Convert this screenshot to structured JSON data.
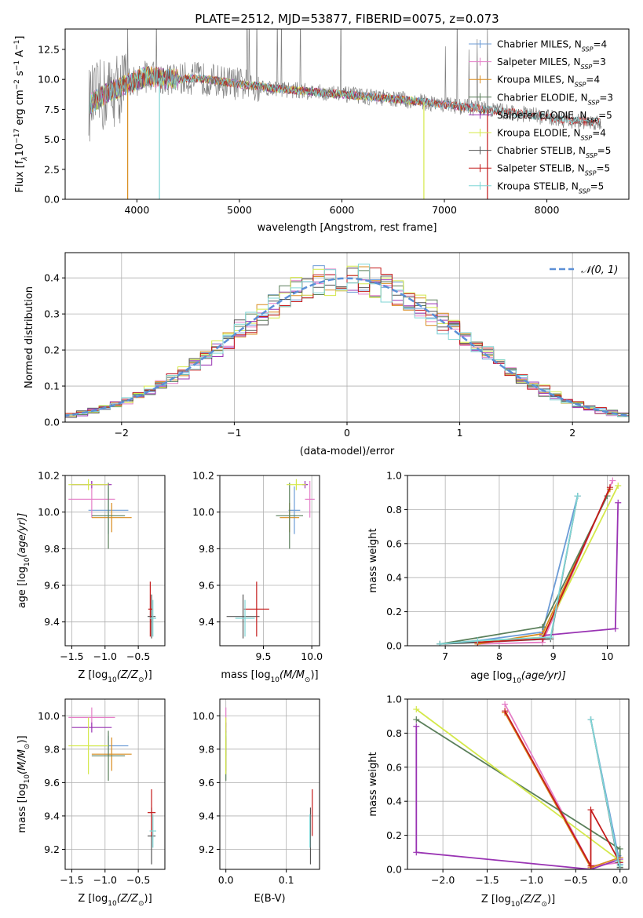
{
  "colors": {
    "Chabrier MILES": "#6b9bd6",
    "Salpeter MILES": "#e57fc8",
    "Kroupa MILES": "#d98c1e",
    "Chabrier ELODIE": "#5a7f5a",
    "Salpeter ELODIE": "#9933b3",
    "Kroupa ELODIE": "#d4e84a",
    "Chabrier STELIB": "#555555",
    "Salpeter STELIB": "#c41a1a",
    "Kroupa STELIB": "#7fd6d6",
    "normal": "#5b8fd6"
  },
  "chart_data": [
    {
      "id": "spectrum",
      "type": "line",
      "title": "PLATE=2512, MJD=53877, FIBERID=0075, z=0.073",
      "xlabel": "wavelength [Angstrom, rest frame]",
      "ylabel": "Flux [f",
      "ylabel_parts": [
        "Flux [f",
        "λ",
        "10",
        "−17",
        " erg cm",
        "−2",
        " s",
        "−1",
        " A",
        "−1",
        "]"
      ],
      "xlim": [
        3300,
        8800
      ],
      "ylim": [
        0,
        14.2
      ],
      "xticks": [
        4000,
        5000,
        6000,
        7000,
        8000
      ],
      "yticks": [
        0.0,
        2.5,
        5.0,
        7.5,
        10.0,
        12.5
      ],
      "ytick_labels": [
        "0.0",
        "2.5",
        "5.0",
        "7.5",
        "10.0",
        "12.5"
      ],
      "legend_position": "top-right",
      "continuum": {
        "x": [
          3530,
          3700,
          3900,
          4100,
          4300,
          4600,
          5000,
          5400,
          5800,
          6200,
          6600,
          7000,
          7400,
          7800,
          8200,
          8530
        ],
        "y": [
          7.9,
          8.8,
          9.6,
          10.3,
          10.0,
          10.1,
          9.6,
          9.2,
          8.9,
          8.6,
          8.3,
          7.9,
          7.5,
          7.1,
          6.6,
          6.4
        ]
      },
      "series": [
        {
          "name": "Chabrier MILES",
          "nssp": "4",
          "x_range": [
            3540,
            7400
          ]
        },
        {
          "name": "Salpeter MILES",
          "nssp": "3",
          "x_range": [
            3540,
            7400
          ]
        },
        {
          "name": "Kroupa MILES",
          "nssp": "4",
          "x_range": [
            3540,
            7400
          ]
        },
        {
          "name": "Chabrier ELODIE",
          "nssp": "3",
          "x_range": [
            3540,
            6800
          ]
        },
        {
          "name": "Salpeter ELODIE",
          "nssp": "5",
          "x_range": [
            3540,
            6800
          ]
        },
        {
          "name": "Kroupa ELODIE",
          "nssp": "4",
          "x_range": [
            3540,
            6800
          ]
        },
        {
          "name": "Chabrier STELIB",
          "nssp": "5",
          "x_range": [
            3540,
            8530
          ]
        },
        {
          "name": "Salpeter STELIB",
          "nssp": "5",
          "x_range": [
            3540,
            8530
          ]
        },
        {
          "name": "Kroupa STELIB",
          "nssp": "5",
          "x_range": [
            3540,
            8530
          ]
        }
      ],
      "dips": [
        {
          "x": 3910,
          "to": 0
        },
        {
          "x": 4220,
          "to": 0
        },
        {
          "x": 6800,
          "to": 0
        },
        {
          "x": 7420,
          "to": 0
        }
      ]
    },
    {
      "id": "residuals",
      "type": "line",
      "xlabel": "(data-model)/error",
      "ylabel": "Normed distribution",
      "xlim": [
        -2.5,
        2.5
      ],
      "ylim": [
        0,
        0.47
      ],
      "xticks": [
        -2,
        -1,
        0,
        1,
        2
      ],
      "xtick_labels": [
        "−2",
        "−1",
        "0",
        "1",
        "2"
      ],
      "yticks": [
        0.0,
        0.1,
        0.2,
        0.3,
        0.4
      ],
      "ytick_labels": [
        "0.0",
        "0.1",
        "0.2",
        "0.3",
        "0.4"
      ],
      "legend": [
        {
          "name": "𝒩(0, 1)"
        }
      ],
      "legend_position": "top-right",
      "bin_width": 0.1
    },
    {
      "id": "age-vs-z",
      "type": "scatter",
      "xlabel_parts": [
        "Z [log",
        "10",
        "(Z/Z",
        "⊙",
        ")]"
      ],
      "ylabel_parts": [
        "age  [log",
        "10",
        "(age/yr)]"
      ],
      "xlim": [
        -1.6,
        -0.1
      ],
      "ylim": [
        9.27,
        10.2
      ],
      "xticks": [
        -1.5,
        -1.0,
        -0.5
      ],
      "xtick_labels": [
        "−1.5",
        "−1.0",
        "−0.5"
      ],
      "yticks": [
        9.4,
        9.6,
        9.8,
        10.0,
        10.2
      ],
      "ytick_labels": [
        "9.4",
        "9.6",
        "9.8",
        "10.0",
        "10.2"
      ],
      "points": [
        {
          "series": "Chabrier MILES",
          "x": -0.95,
          "xerr": 0.3,
          "y": 10.01,
          "yerr": 0.13
        },
        {
          "series": "Salpeter MILES",
          "x": -1.2,
          "xerr": 0.35,
          "y": 10.07,
          "yerr": 0.1
        },
        {
          "series": "Kroupa MILES",
          "x": -0.9,
          "xerr": 0.3,
          "y": 9.97,
          "yerr": 0.08
        },
        {
          "series": "Chabrier ELODIE",
          "x": -0.95,
          "xerr": 0.25,
          "y": 9.98,
          "yerr": 0.18
        },
        {
          "series": "Salpeter ELODIE",
          "x": -1.2,
          "xerr": 0.3,
          "y": 10.15,
          "yerr": 0.02
        },
        {
          "series": "Kroupa ELODIE",
          "x": -1.25,
          "xerr": 0.3,
          "y": 10.15,
          "yerr": 0.03
        },
        {
          "series": "Chabrier STELIB",
          "x": -0.3,
          "xerr": 0.06,
          "y": 9.43,
          "yerr": 0.12
        },
        {
          "series": "Salpeter STELIB",
          "x": -0.32,
          "xerr": 0.03,
          "y": 9.47,
          "yerr": 0.15
        },
        {
          "series": "Kroupa STELIB",
          "x": -0.28,
          "xerr": 0.05,
          "y": 9.42,
          "yerr": 0.1
        }
      ]
    },
    {
      "id": "age-vs-mass",
      "type": "scatter",
      "xlabel_parts": [
        "mass [log",
        "10",
        "(M/M",
        "⊙",
        ")]"
      ],
      "xlim": [
        9.05,
        10.08
      ],
      "ylim": [
        9.27,
        10.2
      ],
      "xticks": [
        9.5,
        10.0
      ],
      "xtick_labels": [
        "9.5",
        "10.0"
      ],
      "yticks": [
        9.4,
        9.6,
        9.8,
        10.0,
        10.2
      ],
      "ytick_labels": [
        "9.4",
        "9.6",
        "9.8",
        "10.0",
        "10.2"
      ],
      "points": [
        {
          "series": "Chabrier MILES",
          "x": 9.82,
          "xerr": 0.06,
          "y": 10.01,
          "yerr": 0.13
        },
        {
          "series": "Salpeter MILES",
          "x": 9.98,
          "xerr": 0.05,
          "y": 10.07,
          "yerr": 0.1
        },
        {
          "series": "Kroupa MILES",
          "x": 9.77,
          "xerr": 0.1,
          "y": 9.97,
          "yerr": 0.08
        },
        {
          "series": "Chabrier ELODIE",
          "x": 9.77,
          "xerr": 0.14,
          "y": 9.98,
          "yerr": 0.18
        },
        {
          "series": "Salpeter ELODIE",
          "x": 9.93,
          "xerr": 0.03,
          "y": 10.15,
          "yerr": 0.02
        },
        {
          "series": "Kroupa ELODIE",
          "x": 9.84,
          "xerr": 0.1,
          "y": 10.15,
          "yerr": 0.03
        },
        {
          "series": "Chabrier STELIB",
          "x": 9.29,
          "xerr": 0.17,
          "y": 9.43,
          "yerr": 0.12
        },
        {
          "series": "Salpeter STELIB",
          "x": 9.43,
          "xerr": 0.13,
          "y": 9.47,
          "yerr": 0.15
        },
        {
          "series": "Kroupa STELIB",
          "x": 9.31,
          "xerr": 0.1,
          "y": 9.42,
          "yerr": 0.1
        }
      ]
    },
    {
      "id": "weight-vs-age",
      "type": "line",
      "xlabel_parts": [
        "age  [log",
        "10",
        "(age/yr)]"
      ],
      "ylabel": "mass weight",
      "xlim": [
        6.3,
        10.4
      ],
      "ylim": [
        0,
        1
      ],
      "xticks": [
        7,
        8,
        9,
        10
      ],
      "xtick_labels": [
        "7",
        "8",
        "9",
        "10"
      ],
      "yticks": [
        0.0,
        0.2,
        0.4,
        0.6,
        0.8,
        1.0
      ],
      "ytick_labels": [
        "0.0",
        "0.2",
        "0.4",
        "0.6",
        "0.8",
        "1.0"
      ],
      "series": [
        {
          "name": "Chabrier MILES",
          "x": [
            6.9,
            7.6,
            8.8,
            9.45
          ],
          "y": [
            0.01,
            0.03,
            0.08,
            0.88
          ]
        },
        {
          "name": "Salpeter MILES",
          "x": [
            7.6,
            8.8,
            10.1
          ],
          "y": [
            0.01,
            0.02,
            0.97
          ]
        },
        {
          "name": "Kroupa MILES",
          "x": [
            7.6,
            8.8,
            10.05
          ],
          "y": [
            0.01,
            0.07,
            0.92
          ]
        },
        {
          "name": "Chabrier ELODIE",
          "x": [
            6.9,
            8.8,
            10.0
          ],
          "y": [
            0.01,
            0.11,
            0.88
          ]
        },
        {
          "name": "Salpeter ELODIE",
          "x": [
            8.8,
            10.15,
            10.2
          ],
          "y": [
            0.06,
            0.1,
            0.84
          ]
        },
        {
          "name": "Kroupa ELODIE",
          "x": [
            7.6,
            8.8,
            10.2
          ],
          "y": [
            0.02,
            0.05,
            0.94
          ]
        },
        {
          "name": "Chabrier STELIB",
          "x": [
            6.9,
            7.6,
            8.95,
            9.45
          ],
          "y": [
            0.01,
            0.02,
            0.04,
            0.88
          ]
        },
        {
          "name": "Salpeter STELIB",
          "x": [
            7.6,
            8.8,
            10.05
          ],
          "y": [
            0.02,
            0.04,
            0.93
          ]
        },
        {
          "name": "Kroupa STELIB",
          "x": [
            6.9,
            7.6,
            8.95,
            9.45
          ],
          "y": [
            0.01,
            0.03,
            0.05,
            0.88
          ]
        }
      ]
    },
    {
      "id": "mass-vs-z",
      "type": "scatter",
      "xlabel_parts": [
        "Z [log",
        "10",
        "(Z/Z",
        "⊙",
        ")]"
      ],
      "ylabel_parts": [
        "mass [log",
        "10",
        "(M/M",
        "⊙",
        ")]"
      ],
      "xlim": [
        -1.6,
        -0.1
      ],
      "ylim": [
        9.08,
        10.1
      ],
      "xticks": [
        -1.5,
        -1.0,
        -0.5
      ],
      "xtick_labels": [
        "−1.5",
        "−1.0",
        "−0.5"
      ],
      "yticks": [
        9.2,
        9.4,
        9.6,
        9.8,
        10.0
      ],
      "ytick_labels": [
        "9.2",
        "9.4",
        "9.6",
        "9.8",
        "10.0"
      ],
      "points": [
        {
          "series": "Chabrier MILES",
          "x": -0.95,
          "xerr": 0.3,
          "y": 9.82,
          "yerr": 0.06
        },
        {
          "series": "Salpeter MILES",
          "x": -1.2,
          "xerr": 0.35,
          "y": 9.99,
          "yerr": 0.06
        },
        {
          "series": "Kroupa MILES",
          "x": -0.9,
          "xerr": 0.3,
          "y": 9.77,
          "yerr": 0.1
        },
        {
          "series": "Chabrier ELODIE",
          "x": -0.95,
          "xerr": 0.25,
          "y": 9.76,
          "yerr": 0.15
        },
        {
          "series": "Salpeter ELODIE",
          "x": -1.2,
          "xerr": 0.3,
          "y": 9.93,
          "yerr": 0.03
        },
        {
          "series": "Kroupa ELODIE",
          "x": -1.25,
          "xerr": 0.3,
          "y": 9.82,
          "yerr": 0.17
        },
        {
          "series": "Chabrier STELIB",
          "x": -0.3,
          "xerr": 0.06,
          "y": 9.28,
          "yerr": 0.17
        },
        {
          "series": "Salpeter STELIB",
          "x": -0.3,
          "xerr": 0.06,
          "y": 9.42,
          "yerr": 0.14
        },
        {
          "series": "Kroupa STELIB",
          "x": -0.28,
          "xerr": 0.05,
          "y": 9.31,
          "yerr": 0.1
        }
      ]
    },
    {
      "id": "mass-vs-ebv",
      "type": "scatter",
      "xlabel": "E(B-V)",
      "xlim": [
        -0.01,
        0.155
      ],
      "ylim": [
        9.08,
        10.1
      ],
      "xticks": [
        0.0,
        0.1
      ],
      "xtick_labels": [
        "0.0",
        "0.1"
      ],
      "yticks": [
        9.2,
        9.4,
        9.6,
        9.8,
        10.0
      ],
      "ytick_labels": [
        "9.2",
        "9.4",
        "9.6",
        "9.8",
        "10.0"
      ],
      "points": [
        {
          "series": "Chabrier MILES",
          "x": 0.0,
          "xerr": 0.0,
          "y": 9.82,
          "yerr": 0.06
        },
        {
          "series": "Salpeter MILES",
          "x": 0.0,
          "xerr": 0.0,
          "y": 9.99,
          "yerr": 0.06
        },
        {
          "series": "Kroupa MILES",
          "x": 0.0,
          "xerr": 0.0,
          "y": 9.77,
          "yerr": 0.1
        },
        {
          "series": "Chabrier ELODIE",
          "x": 0.0,
          "xerr": 0.0,
          "y": 9.76,
          "yerr": 0.15
        },
        {
          "series": "Salpeter ELODIE",
          "x": 0.0,
          "xerr": 0.0,
          "y": 9.93,
          "yerr": 0.03
        },
        {
          "series": "Kroupa ELODIE",
          "x": 0.0,
          "xerr": 0.0,
          "y": 9.82,
          "yerr": 0.17
        },
        {
          "series": "Chabrier STELIB",
          "x": 0.14,
          "xerr": 0.0,
          "y": 9.28,
          "yerr": 0.17
        },
        {
          "series": "Salpeter STELIB",
          "x": 0.143,
          "xerr": 0.0,
          "y": 9.42,
          "yerr": 0.14
        },
        {
          "series": "Kroupa STELIB",
          "x": 0.139,
          "xerr": 0.0,
          "y": 9.31,
          "yerr": 0.1
        }
      ]
    },
    {
      "id": "weight-vs-z",
      "type": "line",
      "xlabel_parts": [
        "Z [log",
        "10",
        "(Z/Z",
        "⊙",
        ")]"
      ],
      "ylabel": "mass weight",
      "xlim": [
        -2.4,
        0.1
      ],
      "ylim": [
        0,
        1
      ],
      "xticks": [
        -2.0,
        -1.5,
        -1.0,
        -0.5,
        0.0
      ],
      "xtick_labels": [
        "−2.0",
        "−1.5",
        "−1.0",
        "−0.5",
        "0.0"
      ],
      "yticks": [
        0.0,
        0.2,
        0.4,
        0.6,
        0.8,
        1.0
      ],
      "ytick_labels": [
        "0.0",
        "0.2",
        "0.4",
        "0.6",
        "0.8",
        "1.0"
      ],
      "series": [
        {
          "name": "Chabrier MILES",
          "x": [
            -0.33,
            -0.02,
            0.0
          ],
          "y": [
            0.88,
            0.08,
            0.03
          ]
        },
        {
          "name": "Salpeter MILES",
          "x": [
            -1.3,
            -0.33,
            0.0
          ],
          "y": [
            0.97,
            0.02,
            0.04
          ]
        },
        {
          "name": "Kroupa MILES",
          "x": [
            -1.3,
            -0.33,
            0.0
          ],
          "y": [
            0.92,
            0.01,
            0.07
          ]
        },
        {
          "name": "Chabrier ELODIE",
          "x": [
            -2.3,
            0.0,
            0.0
          ],
          "y": [
            0.88,
            0.12,
            0.01
          ]
        },
        {
          "name": "Salpeter ELODIE",
          "x": [
            -2.3,
            -2.3,
            -0.33,
            0.0
          ],
          "y": [
            0.84,
            0.1,
            0.0,
            0.06
          ]
        },
        {
          "name": "Kroupa ELODIE",
          "x": [
            -2.3,
            0.0,
            0.0
          ],
          "y": [
            0.94,
            0.05,
            0.02
          ]
        },
        {
          "name": "Chabrier STELIB",
          "x": [
            -0.33,
            -0.02,
            0.0
          ],
          "y": [
            0.88,
            0.04,
            0.01
          ]
        },
        {
          "name": "Salpeter STELIB",
          "x": [
            -1.3,
            -0.33,
            -0.33,
            0.0
          ],
          "y": [
            0.93,
            0.02,
            0.35,
            0.04
          ]
        },
        {
          "name": "Kroupa STELIB",
          "x": [
            -0.33,
            -0.02,
            0.0
          ],
          "y": [
            0.88,
            0.05,
            0.02
          ]
        }
      ]
    }
  ]
}
